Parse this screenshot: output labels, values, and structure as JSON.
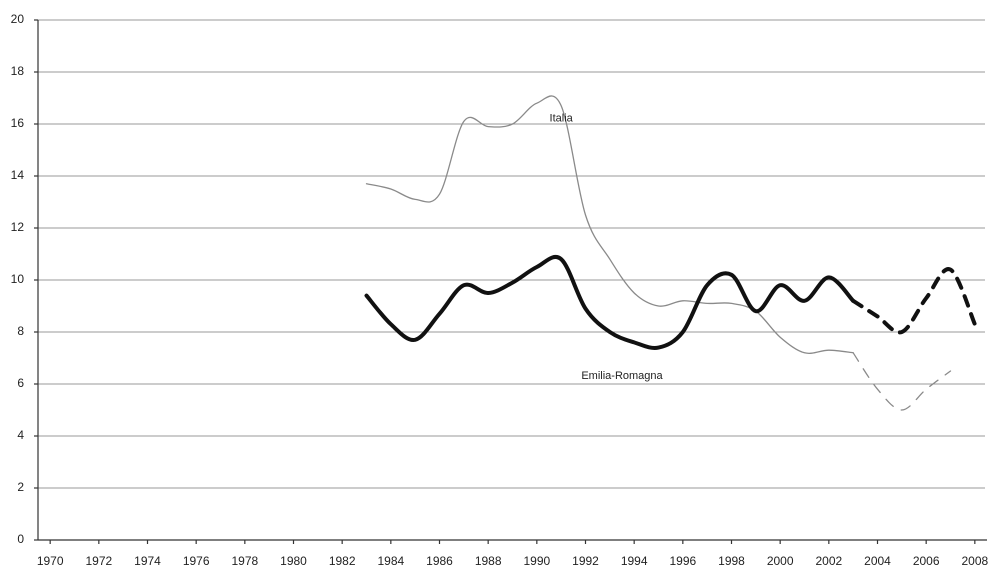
{
  "chart_data": {
    "type": "line",
    "x": [
      1983,
      1984,
      1985,
      1986,
      1987,
      1988,
      1989,
      1990,
      1991,
      1992,
      1993,
      1994,
      1995,
      1996,
      1997,
      1998,
      1999,
      2000,
      2001,
      2002,
      2003,
      2004,
      2005,
      2006,
      2007,
      2008
    ],
    "series": [
      {
        "name": "Italia",
        "color": "#8a8a8a",
        "width": 1.3,
        "dashed_from": 2003,
        "values": [
          13.7,
          13.5,
          13.1,
          13.3,
          16.1,
          15.9,
          16.0,
          16.8,
          16.7,
          12.5,
          10.8,
          9.5,
          9.0,
          9.2,
          9.1,
          9.1,
          8.8,
          7.8,
          7.2,
          7.3,
          7.2,
          5.8,
          5.0,
          5.8,
          6.5,
          null
        ]
      },
      {
        "name": "Emilia-Romagna",
        "color": "#111111",
        "width": 4,
        "dashed_from": 2003,
        "values": [
          9.4,
          8.3,
          7.7,
          8.7,
          9.8,
          9.5,
          9.9,
          10.5,
          10.8,
          8.9,
          8.0,
          7.6,
          7.4,
          8.0,
          9.8,
          10.2,
          8.8,
          9.8,
          9.2,
          10.1,
          9.2,
          8.6,
          8.0,
          9.3,
          10.4,
          8.3
        ]
      }
    ],
    "xlim": [
      1969.5,
      2008.5
    ],
    "xticks": [
      1970,
      1972,
      1974,
      1976,
      1978,
      1980,
      1982,
      1984,
      1986,
      1988,
      1990,
      1992,
      1994,
      1996,
      1998,
      2000,
      2002,
      2004,
      2006,
      2008
    ],
    "ylim": [
      0,
      20
    ],
    "yticks": [
      0,
      2,
      4,
      6,
      8,
      10,
      12,
      14,
      16,
      18,
      20
    ],
    "grid": true
  }
}
